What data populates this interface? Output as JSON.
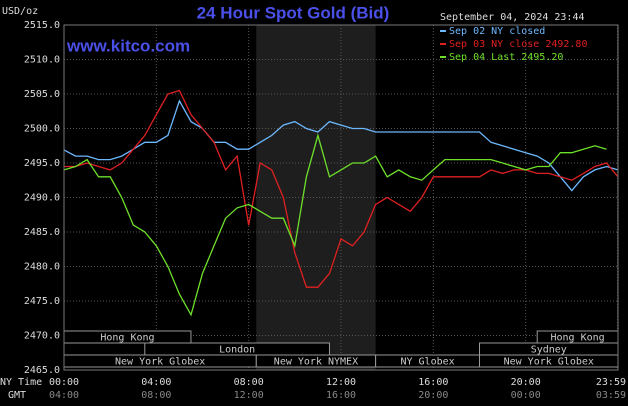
{
  "chart_data": {
    "type": "line",
    "title": "24 Hour Spot Gold (Bid)",
    "y_label": "USD/oz",
    "watermark": "www.kitco.com",
    "timestamp": "September 04, 2024 23:44",
    "x_row_label": "NY Time",
    "x2_row_label": "GMT",
    "x": [
      0,
      0.5,
      1,
      1.5,
      2,
      2.5,
      3,
      3.5,
      4,
      4.5,
      5,
      5.5,
      6,
      6.5,
      7,
      7.5,
      8,
      8.5,
      9,
      9.5,
      10,
      10.5,
      11,
      11.5,
      12,
      12.5,
      13,
      13.5,
      14,
      14.5,
      15,
      15.5,
      16,
      16.5,
      17,
      17.5,
      18,
      18.5,
      19,
      19.5,
      20,
      20.5,
      21,
      21.5,
      22,
      22.5,
      23,
      23.5,
      24
    ],
    "series": [
      {
        "name": "Sep 02 NY closed",
        "color": "#6cb8ff",
        "values": [
          2496.9,
          2496,
          2496,
          2495.5,
          2495.5,
          2496,
          2497,
          2498,
          2498,
          2499,
          2504,
          2501,
          2500,
          2498,
          2498,
          2497,
          2497,
          2498,
          2499,
          2500.5,
          2501,
          2500,
          2499.5,
          2501,
          2500.5,
          2500,
          2500,
          2499.5,
          2499.5,
          2499.5,
          2499.5,
          2499.5,
          2499.5,
          2499.5,
          2499.5,
          2499.5,
          2499.5,
          2498,
          2497.5,
          2497,
          2496.5,
          2496,
          2495,
          2493,
          2491,
          2493,
          2494,
          2494.5,
          2494
        ]
      },
      {
        "name": "Sep 03 NY close 2492.80",
        "color": "#e02020",
        "values": [
          2494.5,
          2494.5,
          2495,
          2494.5,
          2494,
          2495,
          2497,
          2499,
          2502,
          2505,
          2505.5,
          2502,
          2500,
          2498,
          2494,
          2496,
          2486,
          2495,
          2494,
          2490,
          2482,
          2477,
          2477,
          2479,
          2484,
          2483,
          2485,
          2489,
          2490,
          2489,
          2488,
          2490,
          2493,
          2493,
          2493,
          2493,
          2493,
          2494,
          2493.5,
          2494,
          2494,
          2493.5,
          2493.5,
          2493,
          2492.5,
          2493.5,
          2494.5,
          2495,
          2493
        ]
      },
      {
        "name": "Sep 04 Last 2495.20",
        "color": "#6ee02a",
        "values": [
          2494,
          2494.5,
          2495.5,
          2493,
          2493,
          2490,
          2486,
          2485,
          2483,
          2480,
          2476,
          2473,
          2479,
          2483,
          2487,
          2488.5,
          2489,
          2488,
          2487,
          2487,
          2483,
          2493,
          2499,
          2493,
          2494,
          2495,
          2495,
          2496,
          2493,
          2494,
          2493,
          2492.5,
          2494,
          2495.5,
          2495.5,
          2495.5,
          2495.5,
          2495.5,
          2495,
          2494.5,
          2494,
          2494.5,
          2494.5,
          2496.5,
          2496.5,
          2497,
          2497.5,
          2497,
          null
        ]
      }
    ],
    "xlim": [
      0,
      24
    ],
    "xticks": [
      {
        "value": 0,
        "label": "00:00"
      },
      {
        "value": 4,
        "label": "04:00"
      },
      {
        "value": 8,
        "label": "08:00"
      },
      {
        "value": 12,
        "label": "12:00"
      },
      {
        "value": 16,
        "label": "16:00"
      },
      {
        "value": 20,
        "label": "20:00"
      },
      {
        "value": 23.98,
        "label": "23:59"
      }
    ],
    "x2ticks": [
      {
        "value": 0,
        "label": "04:00"
      },
      {
        "value": 4,
        "label": "08:00"
      },
      {
        "value": 8,
        "label": "12:00"
      },
      {
        "value": 12,
        "label": "16:00"
      },
      {
        "value": 16,
        "label": "20:00"
      },
      {
        "value": 20,
        "label": "00:00"
      },
      {
        "value": 23.98,
        "label": "03:59"
      }
    ],
    "ylim": [
      2465,
      2515
    ],
    "yticks": [
      {
        "value": 2465,
        "label": "2465.0"
      },
      {
        "value": 2470,
        "label": "2470.0"
      },
      {
        "value": 2475,
        "label": "2475.0"
      },
      {
        "value": 2480,
        "label": "2480.0"
      },
      {
        "value": 2485,
        "label": "2485.0"
      },
      {
        "value": 2490,
        "label": "2490.0"
      },
      {
        "value": 2495,
        "label": "2495.0"
      },
      {
        "value": 2500,
        "label": "2500.0"
      },
      {
        "value": 2505,
        "label": "2505.0"
      },
      {
        "value": 2510,
        "label": "2510.0"
      },
      {
        "value": 2515,
        "label": "2515.0"
      }
    ],
    "grid": true,
    "sessions": [
      [
        {
          "name": "Hong Kong",
          "start": 0,
          "end": 5.5
        },
        {
          "name": "Hong Kong",
          "start": 20.5,
          "end": 24
        }
      ],
      [
        {
          "name": "London",
          "start": 3.5,
          "end": 11.5
        },
        {
          "name": "Sydney",
          "start": 18,
          "end": 24
        }
      ],
      [
        {
          "name": "New York Globex",
          "start": 0,
          "end": 8.33
        },
        {
          "name": "New York NYMEX",
          "start": 8.33,
          "end": 13.5
        },
        {
          "name": "NY Globex",
          "start": 13.5,
          "end": 18
        },
        {
          "name": "New York Globex",
          "start": 18,
          "end": 24
        }
      ]
    ],
    "highlight": [
      8.33,
      13.5
    ]
  }
}
